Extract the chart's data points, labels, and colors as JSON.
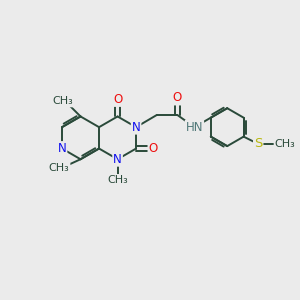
{
  "bg_color": "#ebebeb",
  "bond_color": "#2a4a3a",
  "bond_width": 1.4,
  "atom_colors": {
    "C": "#2a4a3a",
    "N": "#1010ee",
    "O": "#ee1010",
    "S": "#b8b810",
    "H": "#507878"
  },
  "font_size": 8.5,
  "fig_size": [
    3.0,
    3.0
  ],
  "dpi": 100,
  "xlim": [
    0,
    12
  ],
  "ylim": [
    0,
    10
  ]
}
